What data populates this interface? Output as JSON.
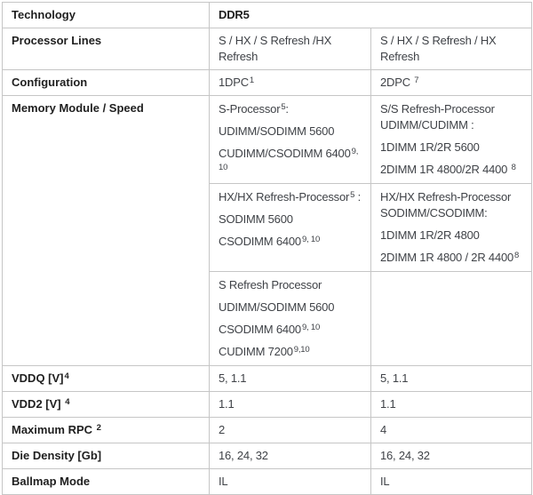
{
  "colors": {
    "border": "#c6c6c6",
    "label_text": "#1f1f1f",
    "body_text": "#3f4247",
    "background": "#ffffff"
  },
  "table": {
    "rows": {
      "technology": {
        "label": "Technology",
        "value": "DDR5"
      },
      "processor_lines": {
        "label": "Processor Lines",
        "c1": "S / HX / S Refresh /HX Refresh",
        "c2": "S / HX / S Refresh / HX Refresh"
      },
      "configuration": {
        "label": "Configuration",
        "c1": [
          [
            {
              "t": "1DPC"
            },
            {
              "t": "1",
              "sup": true
            }
          ]
        ],
        "c2": [
          [
            {
              "t": "2DPC "
            },
            {
              "t": "7",
              "sup": true
            }
          ]
        ]
      },
      "memory": {
        "label": "Memory Module / Speed",
        "sub1": {
          "c1": [
            [
              {
                "t": "S-Processor"
              },
              {
                "t": "5",
                "sup": true
              },
              {
                "t": ":"
              }
            ],
            [
              {
                "t": "UDIMM/SODIMM 5600"
              }
            ],
            [
              {
                "t": "CUDIMM/CSODIMM 6400"
              },
              {
                "t": "9, 10",
                "sup": true
              }
            ]
          ],
          "c2": [
            [
              {
                "t": "S/S Refresh-Processor UDIMM/CUDIMM :"
              }
            ],
            [
              {
                "t": "1DIMM 1R/2R 5600"
              }
            ],
            [
              {
                "t": "2DIMM 1R 4800/2R 4400 "
              },
              {
                "t": "8",
                "sup": true
              }
            ]
          ]
        },
        "sub2": {
          "c1": [
            [
              {
                "t": "HX/HX Refresh-Processor"
              },
              {
                "t": "5",
                "sup": true
              },
              {
                "t": " :"
              }
            ],
            [
              {
                "t": "SODIMM 5600"
              }
            ],
            [
              {
                "t": "CSODIMM 6400"
              },
              {
                "t": "9, 10",
                "sup": true
              }
            ]
          ],
          "c2": [
            [
              {
                "t": "HX/HX Refresh-Processor SODIMM/CSODIMM:"
              }
            ],
            [
              {
                "t": "1DIMM 1R/2R 4800"
              }
            ],
            [
              {
                "t": "2DIMM 1R 4800 / 2R 4400"
              },
              {
                "t": "8",
                "sup": true
              }
            ]
          ]
        },
        "sub3": {
          "c1": [
            [
              {
                "t": "S Refresh Processor"
              }
            ],
            [
              {
                "t": "UDIMM/SODIMM 5600"
              }
            ],
            [
              {
                "t": "CSODIMM 6400"
              },
              {
                "t": "9, 10",
                "sup": true
              }
            ],
            [
              {
                "t": "CUDIMM 7200"
              },
              {
                "t": "9,10",
                "sup": true
              }
            ]
          ],
          "c2": []
        }
      },
      "vddq": {
        "label": [
          [
            {
              "t": "VDDQ [V]"
            },
            {
              "t": "4",
              "sup": true
            }
          ]
        ],
        "c1": "5, 1.1",
        "c2": "5, 1.1"
      },
      "vdd2": {
        "label": [
          [
            {
              "t": "VDD2 [V] "
            },
            {
              "t": "4",
              "sup": true
            }
          ]
        ],
        "c1": "1.1",
        "c2": "1.1"
      },
      "max_rpc": {
        "label": [
          [
            {
              "t": "Maximum RPC "
            },
            {
              "t": "2",
              "sup": true
            }
          ]
        ],
        "c1": "2",
        "c2": "4"
      },
      "die_density": {
        "label": "Die Density [Gb]",
        "c1": "16, 24, 32",
        "c2": "16, 24, 32"
      },
      "ballmap": {
        "label": "Ballmap Mode",
        "c1": "IL",
        "c2": "IL"
      }
    }
  }
}
